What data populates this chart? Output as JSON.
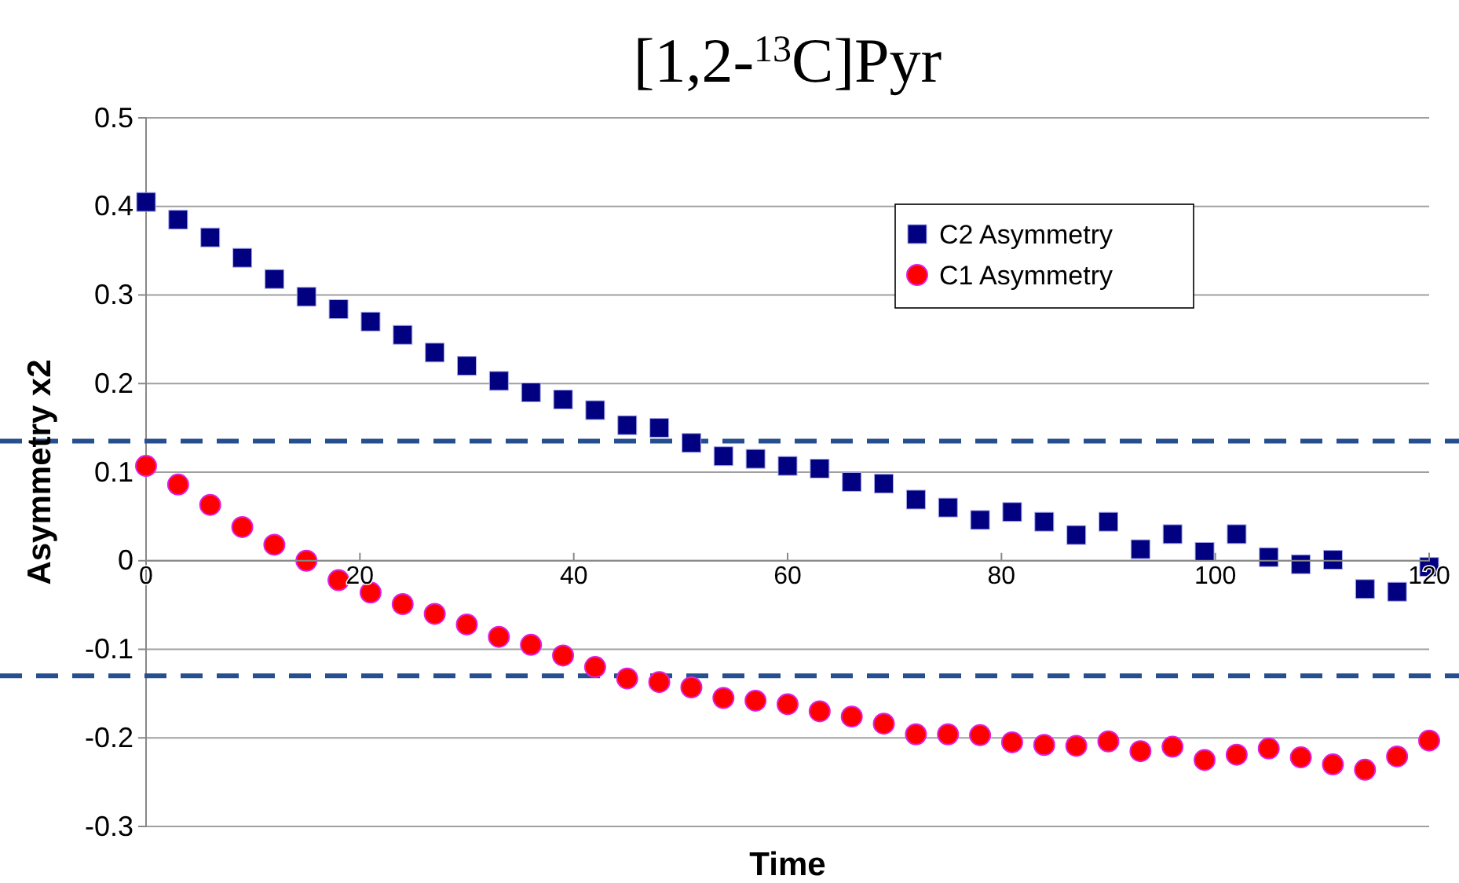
{
  "chart_data": {
    "type": "scatter",
    "title": "[1,2-$^{13}$C]Pyr",
    "xlabel": "Time",
    "ylabel": "Asymmetry x2",
    "x": [
      0,
      3,
      6,
      9,
      12,
      15,
      18,
      21,
      24,
      27,
      30,
      33,
      36,
      39,
      42,
      45,
      48,
      51,
      54,
      57,
      60,
      63,
      66,
      69,
      72,
      75,
      78,
      81,
      84,
      87,
      90,
      93,
      96,
      99,
      102,
      105,
      108,
      111,
      114,
      117,
      120
    ],
    "xlim": [
      0,
      120
    ],
    "xticks": [
      0,
      20,
      40,
      60,
      80,
      100,
      120
    ],
    "ylim": [
      -0.3,
      0.5
    ],
    "yticks": [
      -0.3,
      -0.2,
      -0.1,
      0,
      0.1,
      0.2,
      0.3,
      0.4,
      0.5
    ],
    "grid": "y",
    "legend": "top right",
    "series": [
      {
        "name": "C2 Asymmetry",
        "color": "#000080",
        "marker": "square",
        "values": [
          0.405,
          0.385,
          0.365,
          0.342,
          0.318,
          0.298,
          0.284,
          0.27,
          0.255,
          0.235,
          0.22,
          0.203,
          0.19,
          0.182,
          0.17,
          0.153,
          0.15,
          0.133,
          0.118,
          0.115,
          0.107,
          0.104,
          0.089,
          0.087,
          0.069,
          0.06,
          0.046,
          0.055,
          0.044,
          0.029,
          0.044,
          0.013,
          0.03,
          0.01,
          0.03,
          0.004,
          -0.004,
          0.001,
          -0.032,
          -0.035,
          -0.007
        ]
      },
      {
        "name": "C1 Asymmetry",
        "color": "#ff0000",
        "marker": "circle",
        "values": [
          0.107,
          0.086,
          0.063,
          0.038,
          0.018,
          0,
          -0.022,
          -0.036,
          -0.049,
          -0.06,
          -0.072,
          -0.086,
          -0.095,
          -0.107,
          -0.12,
          -0.133,
          -0.137,
          -0.143,
          -0.155,
          -0.158,
          -0.162,
          -0.17,
          -0.176,
          -0.184,
          -0.196,
          -0.196,
          -0.197,
          -0.205,
          -0.208,
          -0.209,
          -0.204,
          -0.215,
          -0.21,
          -0.225,
          -0.219,
          -0.212,
          -0.222,
          -0.23,
          -0.236,
          -0.221,
          -0.203
        ]
      }
    ],
    "ref_lines": [
      {
        "axis": "y",
        "value": 0.135,
        "color": "#264f8f",
        "line_style": "dashed"
      },
      {
        "axis": "y",
        "value": -0.13,
        "color": "#264f8f",
        "line_style": "dashed"
      }
    ]
  }
}
